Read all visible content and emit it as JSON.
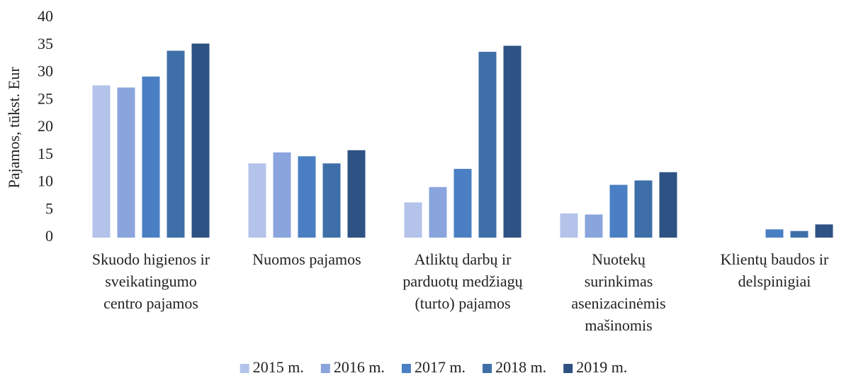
{
  "chart_data": {
    "type": "bar",
    "y_label": "Pajamos, tūkst. Eur",
    "categories": [
      "Skuodo higienos ir\nsveikatingumo\ncentro pajamos",
      "Nuomos pajamos",
      "Atliktų darbų ir\nparduotų medžiagų\n(turto) pajamos",
      "Nuotekų\nsurinkimas\nasenizacinėmis\nmašinomis",
      "Klientų baudos ir\ndelspinigiai"
    ],
    "series": [
      {
        "name": "2015 m.",
        "color": "#b4c3ea",
        "values": [
          27.7,
          13.5,
          6.4,
          4.4,
          null
        ]
      },
      {
        "name": "2016 m.",
        "color": "#8aa4dd",
        "values": [
          27.3,
          15.5,
          9.2,
          4.2,
          null
        ]
      },
      {
        "name": "2017 m.",
        "color": "#4a7fc4",
        "values": [
          29.3,
          14.8,
          12.5,
          9.6,
          1.5
        ]
      },
      {
        "name": "2018 m.",
        "color": "#3f6fa8",
        "values": [
          34.0,
          13.5,
          33.8,
          10.4,
          1.2
        ]
      },
      {
        "name": "2019 m.",
        "color": "#2e5283",
        "values": [
          35.3,
          15.9,
          34.9,
          11.9,
          2.4
        ]
      }
    ],
    "ylim": [
      0,
      40
    ],
    "yticks": [
      0,
      5,
      10,
      15,
      20,
      25,
      30,
      35,
      40
    ],
    "grid": false,
    "legend": "bottom"
  }
}
